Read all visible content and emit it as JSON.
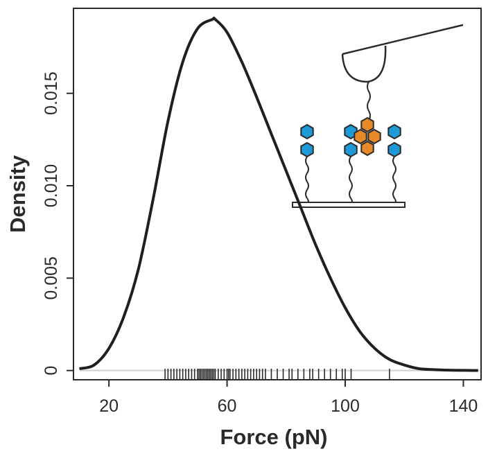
{
  "chart_data": {
    "type": "line",
    "subtype": "density-with-rug",
    "title": "",
    "xlabel": "Force (pN)",
    "ylabel": "Density",
    "xlim": [
      8,
      146
    ],
    "ylim": [
      -0.0005,
      0.0196
    ],
    "x_ticks": [
      {
        "value": 20,
        "label": "20"
      },
      {
        "value": 60,
        "label": "60"
      },
      {
        "value": 100,
        "label": "100"
      },
      {
        "value": 140,
        "label": "140"
      }
    ],
    "y_ticks": [
      {
        "value": 0,
        "label": "0"
      },
      {
        "value": 0.005,
        "label": "0.005"
      },
      {
        "value": 0.01,
        "label": "0.010"
      },
      {
        "value": 0.015,
        "label": "0.015"
      }
    ],
    "series": [
      {
        "name": "density",
        "x": [
          10,
          15,
          20,
          25,
          30,
          35,
          40,
          45,
          50,
          55,
          56,
          60,
          65,
          70,
          75,
          80,
          85,
          90,
          95,
          100,
          105,
          110,
          115,
          120,
          125,
          130,
          135,
          140,
          145
        ],
        "y": [
          0.0001,
          0.0003,
          0.0012,
          0.0029,
          0.0055,
          0.0093,
          0.0135,
          0.0167,
          0.0185,
          0.019,
          0.019,
          0.0183,
          0.0167,
          0.0148,
          0.0128,
          0.0108,
          0.0088,
          0.0068,
          0.005,
          0.0034,
          0.0021,
          0.0012,
          0.0006,
          0.0003,
          0.0001,
          5e-05,
          2e-05,
          1e-05,
          0.0
        ]
      }
    ],
    "rug": [
      39,
      40,
      41,
      42,
      43,
      44,
      45,
      46,
      47,
      48,
      49,
      50,
      50.5,
      51,
      51.5,
      52,
      52.5,
      53,
      53.5,
      54,
      54.5,
      55,
      55.5,
      56,
      57,
      58,
      59,
      60,
      60.5,
      61,
      62,
      63,
      64,
      65,
      66,
      67,
      68,
      69,
      70,
      71,
      72,
      73,
      75,
      77,
      79,
      81,
      82,
      84,
      86,
      88,
      89,
      91,
      93,
      95,
      97,
      99,
      100,
      102,
      115
    ],
    "baseline": 0,
    "grid": false,
    "inset": "schematic-afm-tip-pulling-molecules"
  }
}
